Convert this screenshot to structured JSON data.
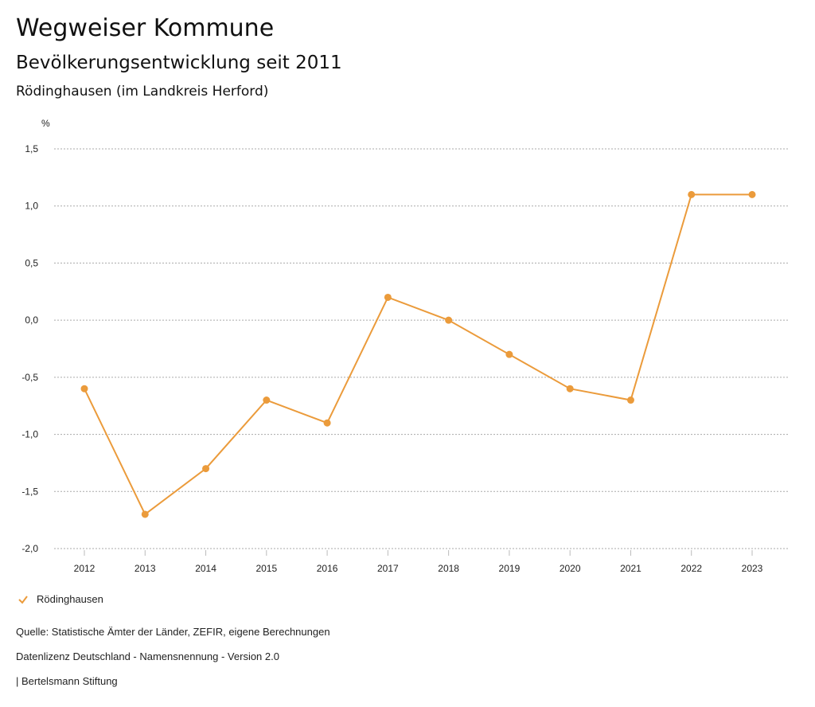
{
  "header": {
    "title": "Wegweiser Kommune",
    "subtitle": "Bevölkerungsentwicklung seit 2011",
    "region": "Rödinghausen (im Landkreis Herford)"
  },
  "chart_data": {
    "type": "line",
    "ylabel": "%",
    "ylim": [
      -2.0,
      1.5
    ],
    "yticks": [
      1.5,
      1.0,
      0.5,
      0.0,
      -0.5,
      -1.0,
      -1.5,
      -2.0
    ],
    "ytick_labels": [
      "1,5",
      "1,0",
      "0,5",
      "0,0",
      "-0,5",
      "-1,0",
      "-1,5",
      "-2,0"
    ],
    "grid": true,
    "categories": [
      "2012",
      "2013",
      "2014",
      "2015",
      "2016",
      "2017",
      "2018",
      "2019",
      "2020",
      "2021",
      "2022",
      "2023"
    ],
    "series": [
      {
        "name": "Rödinghausen",
        "color": "#EB9B3B",
        "values": [
          -0.6,
          -1.7,
          -1.3,
          -0.7,
          -0.9,
          0.2,
          0.0,
          -0.3,
          -0.6,
          -0.7,
          1.1,
          1.1
        ]
      }
    ],
    "legend": "bottom-left"
  },
  "footer": {
    "source": "Quelle: Statistische Ämter der Länder, ZEFIR, eigene Berechnungen",
    "license": "Datenlizenz Deutschland - Namensnennung - Version 2.0",
    "brand": "| Bertelsmann Stiftung"
  }
}
